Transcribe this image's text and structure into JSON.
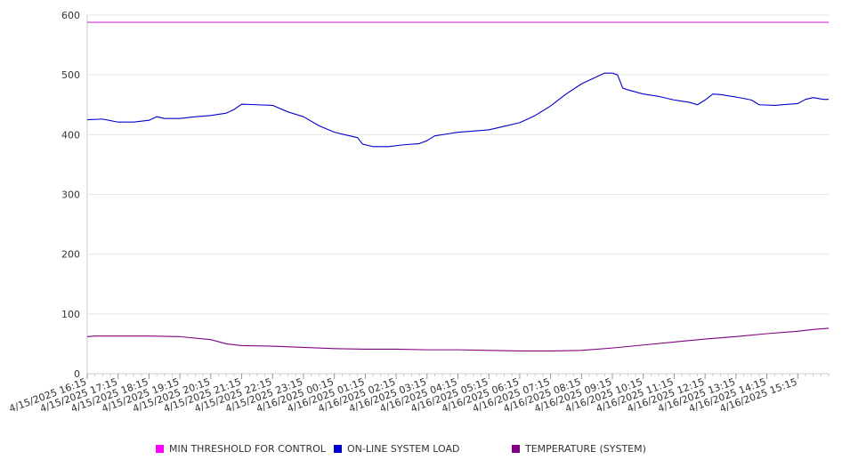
{
  "chart_data": {
    "type": "line",
    "title": "",
    "xlabel": "",
    "ylabel": "",
    "ylim": [
      0,
      600
    ],
    "y_ticks": [
      "0",
      "100",
      "200",
      "300",
      "400",
      "500",
      "600"
    ],
    "x_range": [
      "4/15/2025 16:15",
      "4/16/2025 16:15"
    ],
    "x_tick_labels": [
      "4/15/2025 16:15",
      "4/15/2025 17:15",
      "4/15/2025 18:15",
      "4/15/2025 19:15",
      "4/15/2025 20:15",
      "4/15/2025 21:15",
      "4/15/2025 22:15",
      "4/15/2025 23:15",
      "4/16/2025 00:15",
      "4/16/2025 01:15",
      "4/16/2025 02:15",
      "4/16/2025 03:15",
      "4/16/2025 04:15",
      "4/16/2025 05:15",
      "4/16/2025 06:15",
      "4/16/2025 07:15",
      "4/16/2025 08:15",
      "4/16/2025 09:15",
      "4/16/2025 10:15",
      "4/16/2025 11:15",
      "4/16/2025 12:15",
      "4/16/2025 13:15",
      "4/16/2025 14:15",
      "4/16/2025 15:15"
    ],
    "grid": true,
    "legend_position": "bottom",
    "series": [
      {
        "name": "MIN THRESHOLD FOR CONTROL",
        "color": "#cc33cc",
        "points": [
          [
            "4/15/2025 16:15",
            588
          ],
          [
            "4/16/2025 16:15",
            588
          ]
        ]
      },
      {
        "name": "ON-LINE SYSTEM LOAD",
        "color": "#0000cc",
        "points": [
          [
            "4/15/2025 16:15",
            425
          ],
          [
            "4/15/2025 16:45",
            426
          ],
          [
            "4/15/2025 17:15",
            421
          ],
          [
            "4/15/2025 17:45",
            421
          ],
          [
            "4/15/2025 18:15",
            424
          ],
          [
            "4/15/2025 18:30",
            430
          ],
          [
            "4/15/2025 18:45",
            427
          ],
          [
            "4/15/2025 19:15",
            427
          ],
          [
            "4/15/2025 19:45",
            430
          ],
          [
            "4/15/2025 20:15",
            432
          ],
          [
            "4/15/2025 20:45",
            436
          ],
          [
            "4/15/2025 21:00",
            442
          ],
          [
            "4/15/2025 21:15",
            451
          ],
          [
            "4/15/2025 21:45",
            450
          ],
          [
            "4/15/2025 22:15",
            449
          ],
          [
            "4/15/2025 22:45",
            438
          ],
          [
            "4/15/2025 23:15",
            430
          ],
          [
            "4/15/2025 23:45",
            415
          ],
          [
            "4/16/2025 00:15",
            404
          ],
          [
            "4/16/2025 00:45",
            398
          ],
          [
            "4/16/2025 01:00",
            395
          ],
          [
            "4/16/2025 01:10",
            384
          ],
          [
            "4/16/2025 01:30",
            380
          ],
          [
            "4/16/2025 02:00",
            380
          ],
          [
            "4/16/2025 02:30",
            383
          ],
          [
            "4/16/2025 03:00",
            385
          ],
          [
            "4/16/2025 03:15",
            390
          ],
          [
            "4/16/2025 03:30",
            398
          ],
          [
            "4/16/2025 04:15",
            404
          ],
          [
            "4/16/2025 04:45",
            406
          ],
          [
            "4/16/2025 05:15",
            408
          ],
          [
            "4/16/2025 05:45",
            414
          ],
          [
            "4/16/2025 06:15",
            420
          ],
          [
            "4/16/2025 06:45",
            432
          ],
          [
            "4/16/2025 07:15",
            448
          ],
          [
            "4/16/2025 07:45",
            468
          ],
          [
            "4/16/2025 08:15",
            485
          ],
          [
            "4/16/2025 08:45",
            497
          ],
          [
            "4/16/2025 09:00",
            503
          ],
          [
            "4/16/2025 09:15",
            503
          ],
          [
            "4/16/2025 09:25",
            500
          ],
          [
            "4/16/2025 09:35",
            478
          ],
          [
            "4/16/2025 09:45",
            475
          ],
          [
            "4/16/2025 10:15",
            468
          ],
          [
            "4/16/2025 10:45",
            464
          ],
          [
            "4/16/2025 11:15",
            458
          ],
          [
            "4/16/2025 11:45",
            454
          ],
          [
            "4/16/2025 12:00",
            450
          ],
          [
            "4/16/2025 12:15",
            458
          ],
          [
            "4/16/2025 12:30",
            468
          ],
          [
            "4/16/2025 12:45",
            467
          ],
          [
            "4/16/2025 13:15",
            463
          ],
          [
            "4/16/2025 13:45",
            458
          ],
          [
            "4/16/2025 14:00",
            450
          ],
          [
            "4/16/2025 14:30",
            449
          ],
          [
            "4/16/2025 15:00",
            451
          ],
          [
            "4/16/2025 15:15",
            452
          ],
          [
            "4/16/2025 15:30",
            459
          ],
          [
            "4/16/2025 15:45",
            462
          ],
          [
            "4/16/2025 16:05",
            459
          ],
          [
            "4/16/2025 16:15",
            459
          ]
        ]
      },
      {
        "name": "TEMPERATURE (SYSTEM)",
        "color": "#800080",
        "points": [
          [
            "4/15/2025 16:15",
            62
          ],
          [
            "4/15/2025 16:30",
            63
          ],
          [
            "4/15/2025 18:15",
            63
          ],
          [
            "4/15/2025 19:15",
            62
          ],
          [
            "4/15/2025 20:15",
            57
          ],
          [
            "4/15/2025 20:45",
            50
          ],
          [
            "4/15/2025 21:15",
            47
          ],
          [
            "4/15/2025 22:15",
            46
          ],
          [
            "4/15/2025 23:15",
            44
          ],
          [
            "4/16/2025 00:15",
            42
          ],
          [
            "4/16/2025 01:15",
            41
          ],
          [
            "4/16/2025 02:15",
            41
          ],
          [
            "4/16/2025 03:15",
            40
          ],
          [
            "4/16/2025 04:15",
            40
          ],
          [
            "4/16/2025 05:15",
            39
          ],
          [
            "4/16/2025 06:15",
            38
          ],
          [
            "4/16/2025 07:15",
            38
          ],
          [
            "4/16/2025 08:15",
            39
          ],
          [
            "4/16/2025 09:15",
            43
          ],
          [
            "4/16/2025 10:15",
            48
          ],
          [
            "4/16/2025 11:15",
            53
          ],
          [
            "4/16/2025 12:15",
            58
          ],
          [
            "4/16/2025 13:15",
            62
          ],
          [
            "4/16/2025 14:15",
            67
          ],
          [
            "4/16/2025 15:15",
            71
          ],
          [
            "4/16/2025 15:45",
            74
          ],
          [
            "4/16/2025 16:15",
            76
          ]
        ]
      }
    ]
  }
}
